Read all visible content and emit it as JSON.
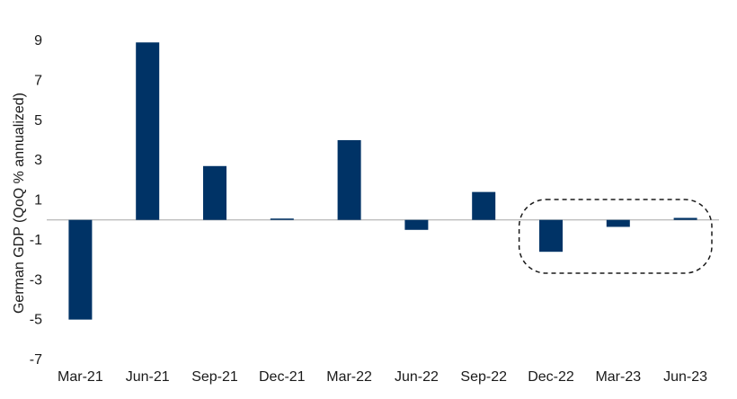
{
  "chart_data": {
    "type": "bar",
    "title": "",
    "xlabel": "",
    "ylabel": "German GDP (QoQ % annualized)",
    "categories": [
      "Mar-21",
      "Jun-21",
      "Sep-21",
      "Dec-21",
      "Mar-22",
      "Jun-22",
      "Sep-22",
      "Dec-22",
      "Mar-23",
      "Jun-23"
    ],
    "values": [
      -5.0,
      8.9,
      2.7,
      0.05,
      4.0,
      -0.5,
      1.4,
      -1.6,
      -0.35,
      0.1
    ],
    "ylim": [
      -7,
      9
    ],
    "yticks": [
      "9",
      "7",
      "5",
      "3",
      "1",
      "-1",
      "-3",
      "-5",
      "-7"
    ],
    "grid": false,
    "bar_color": "#003366",
    "highlight": {
      "style": "dashed rounded box",
      "categories": [
        "Dec-22",
        "Mar-23",
        "Jun-23"
      ]
    }
  }
}
